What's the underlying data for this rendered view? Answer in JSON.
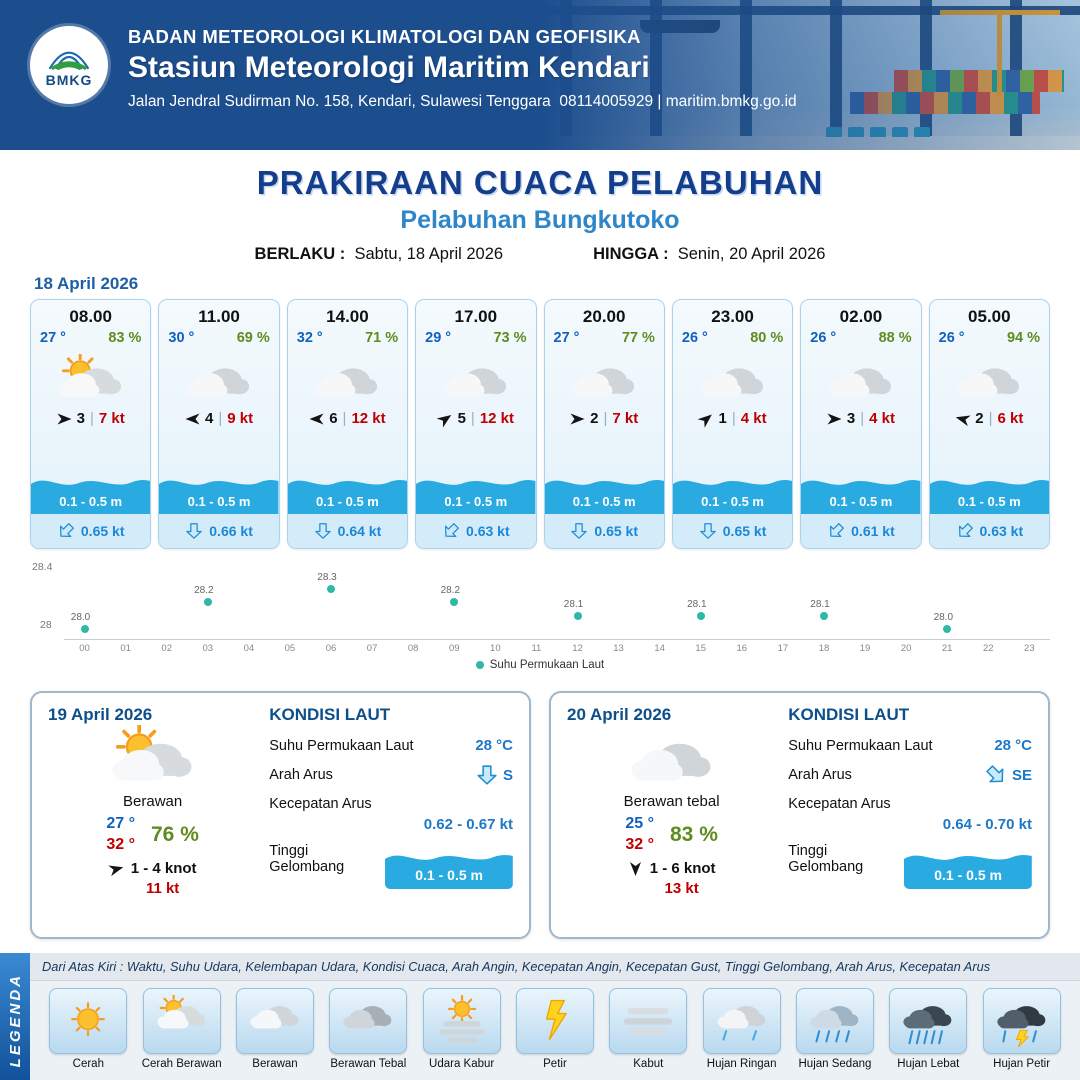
{
  "header": {
    "logo_text": "BMKG",
    "org": "BADAN METEOROLOGI KLIMATOLOGI DAN GEOFISIKA",
    "station": "Stasiun Meteorologi Maritim Kendari",
    "address": "Jalan Jendral Sudirman No. 158, Kendari, Sulawesi Tenggara",
    "contact": "08114005929 | maritim.bmkg.go.id"
  },
  "title": {
    "main": "PRAKIRAAN CUACA PELABUHAN",
    "subtitle": "Pelabuhan Bungkutoko",
    "berlaku_label": "BERLAKU :",
    "berlaku_value": "Sabtu, 18 April 2026",
    "hingga_label": "HINGGA :",
    "hingga_value": "Senin, 20 April 2026"
  },
  "hourly": {
    "date": "18 April 2026",
    "cards": [
      {
        "time": "08.00",
        "temp": "27 °",
        "rh": "83 %",
        "icon": "cerah-berawan",
        "wind_rot": 0,
        "wind": "3",
        "gust": "7 kt",
        "wave": "0.1 - 0.5 m",
        "cur_rot": 45,
        "cur": "0.65 kt"
      },
      {
        "time": "11.00",
        "temp": "30 °",
        "rh": "69 %",
        "icon": "berawan",
        "wind_rot": 180,
        "wind": "4",
        "gust": "9 kt",
        "wave": "0.1 - 0.5 m",
        "cur_rot": 0,
        "cur": "0.66 kt"
      },
      {
        "time": "14.00",
        "temp": "32 °",
        "rh": "71 %",
        "icon": "berawan",
        "wind_rot": 180,
        "wind": "6",
        "gust": "12 kt",
        "wave": "0.1 - 0.5 m",
        "cur_rot": 0,
        "cur": "0.64 kt"
      },
      {
        "time": "17.00",
        "temp": "29 °",
        "rh": "73 %",
        "icon": "berawan",
        "wind_rot": -35,
        "wind": "5",
        "gust": "12 kt",
        "wave": "0.1 - 0.5 m",
        "cur_rot": 45,
        "cur": "0.63 kt"
      },
      {
        "time": "20.00",
        "temp": "27 °",
        "rh": "77 %",
        "icon": "berawan",
        "wind_rot": 0,
        "wind": "2",
        "gust": "7 kt",
        "wave": "0.1 - 0.5 m",
        "cur_rot": 0,
        "cur": "0.65 kt"
      },
      {
        "time": "23.00",
        "temp": "26 °",
        "rh": "80 %",
        "icon": "berawan",
        "wind_rot": -40,
        "wind": "1",
        "gust": "4 kt",
        "wave": "0.1 - 0.5 m",
        "cur_rot": 0,
        "cur": "0.65 kt"
      },
      {
        "time": "02.00",
        "temp": "26 °",
        "rh": "88 %",
        "icon": "berawan",
        "wind_rot": 0,
        "wind": "3",
        "gust": "4 kt",
        "wave": "0.1 - 0.5 m",
        "cur_rot": 45,
        "cur": "0.61 kt"
      },
      {
        "time": "05.00",
        "temp": "26 °",
        "rh": "94 %",
        "icon": "berawan",
        "wind_rot": 195,
        "wind": "2",
        "gust": "6 kt",
        "wave": "0.1 - 0.5 m",
        "cur_rot": 45,
        "cur": "0.63 kt"
      }
    ]
  },
  "chart_data": {
    "type": "scatter",
    "series": [
      {
        "name": "Suhu Permukaan Laut",
        "x": [
          0,
          3,
          6,
          9,
          12,
          15,
          18,
          21
        ],
        "values": [
          28.0,
          28.2,
          28.3,
          28.2,
          28.1,
          28.1,
          28.1,
          28.0
        ]
      }
    ],
    "ylim": [
      28,
      28.4
    ],
    "yticks": [
      "28.4",
      "28"
    ],
    "xticks": [
      "00",
      "01",
      "02",
      "03",
      "04",
      "05",
      "06",
      "07",
      "08",
      "09",
      "10",
      "11",
      "12",
      "13",
      "14",
      "15",
      "16",
      "17",
      "18",
      "19",
      "20",
      "21",
      "22",
      "23"
    ],
    "legend": "Suhu Permukaan Laut",
    "dot_color": "#2fb8a8",
    "grid": false,
    "legend_position": "bottom-center"
  },
  "days": [
    {
      "date": "19 April 2026",
      "icon": "cerah-berawan",
      "cond": "Berawan",
      "tmin": "27 °",
      "tmax": "32 °",
      "rh": "76 %",
      "wind_rot": -15,
      "wind": "1 - 4 knot",
      "gust": "11 kt",
      "sea": {
        "heading": "KONDISI LAUT",
        "sst_label": "Suhu Permukaan Laut",
        "sst": "28 °C",
        "arah_label": "Arah Arus",
        "arah_rot": 0,
        "arah": "S",
        "kec_label": "Kecepatan Arus",
        "kec": "0.62 - 0.67 kt",
        "gel_label": "Tinggi Gelombang",
        "gel": "0.1 - 0.5 m"
      }
    },
    {
      "date": "20 April 2026",
      "icon": "berawan",
      "cond": "Berawan tebal",
      "tmin": "25 °",
      "tmax": "32 °",
      "rh": "83 %",
      "wind_rot": 90,
      "wind": "1 - 6 knot",
      "gust": "13 kt",
      "sea": {
        "heading": "KONDISI LAUT",
        "sst_label": "Suhu Permukaan Laut",
        "sst": "28 °C",
        "arah_label": "Arah Arus",
        "arah_rot": -45,
        "arah": "SE",
        "kec_label": "Kecepatan Arus",
        "kec": "0.64 - 0.70 kt",
        "gel_label": "Tinggi Gelombang",
        "gel": "0.1 - 0.5 m"
      }
    }
  ],
  "legend": {
    "title": "LEGENDA",
    "note": "Dari Atas Kiri : Waktu, Suhu Udara, Kelembapan Udara, Kondisi Cuaca, Arah Angin, Kecepatan Angin, Kecepatan Gust, Tinggi Gelombang, Arah Arus, Kecepatan Arus",
    "items": [
      {
        "label": "Cerah",
        "icon": "cerah"
      },
      {
        "label": "Cerah Berawan",
        "icon": "cerah-berawan"
      },
      {
        "label": "Berawan",
        "icon": "berawan"
      },
      {
        "label": "Berawan Tebal",
        "icon": "berawan-tebal"
      },
      {
        "label": "Udara Kabur",
        "icon": "udara-kabur"
      },
      {
        "label": "Petir",
        "icon": "petir"
      },
      {
        "label": "Kabut",
        "icon": "kabut"
      },
      {
        "label": "Hujan Ringan",
        "icon": "hujan-ringan"
      },
      {
        "label": "Hujan Sedang",
        "icon": "hujan-sedang"
      },
      {
        "label": "Hujan Lebat",
        "icon": "hujan-lebat"
      },
      {
        "label": "Hujan Petir",
        "icon": "hujan-petir"
      }
    ]
  },
  "colors": {
    "header_blue": "#1c4d8d",
    "title_navy": "#143e8c",
    "subtitle_blue": "#2e86c8",
    "temp_blue": "#1060c0",
    "humidity_green": "#5e8c1e",
    "gust_red": "#c00000",
    "wave_blue": "#29abe2",
    "current_blue": "#1b87d6",
    "sst_dot_teal": "#2fb8a8"
  }
}
